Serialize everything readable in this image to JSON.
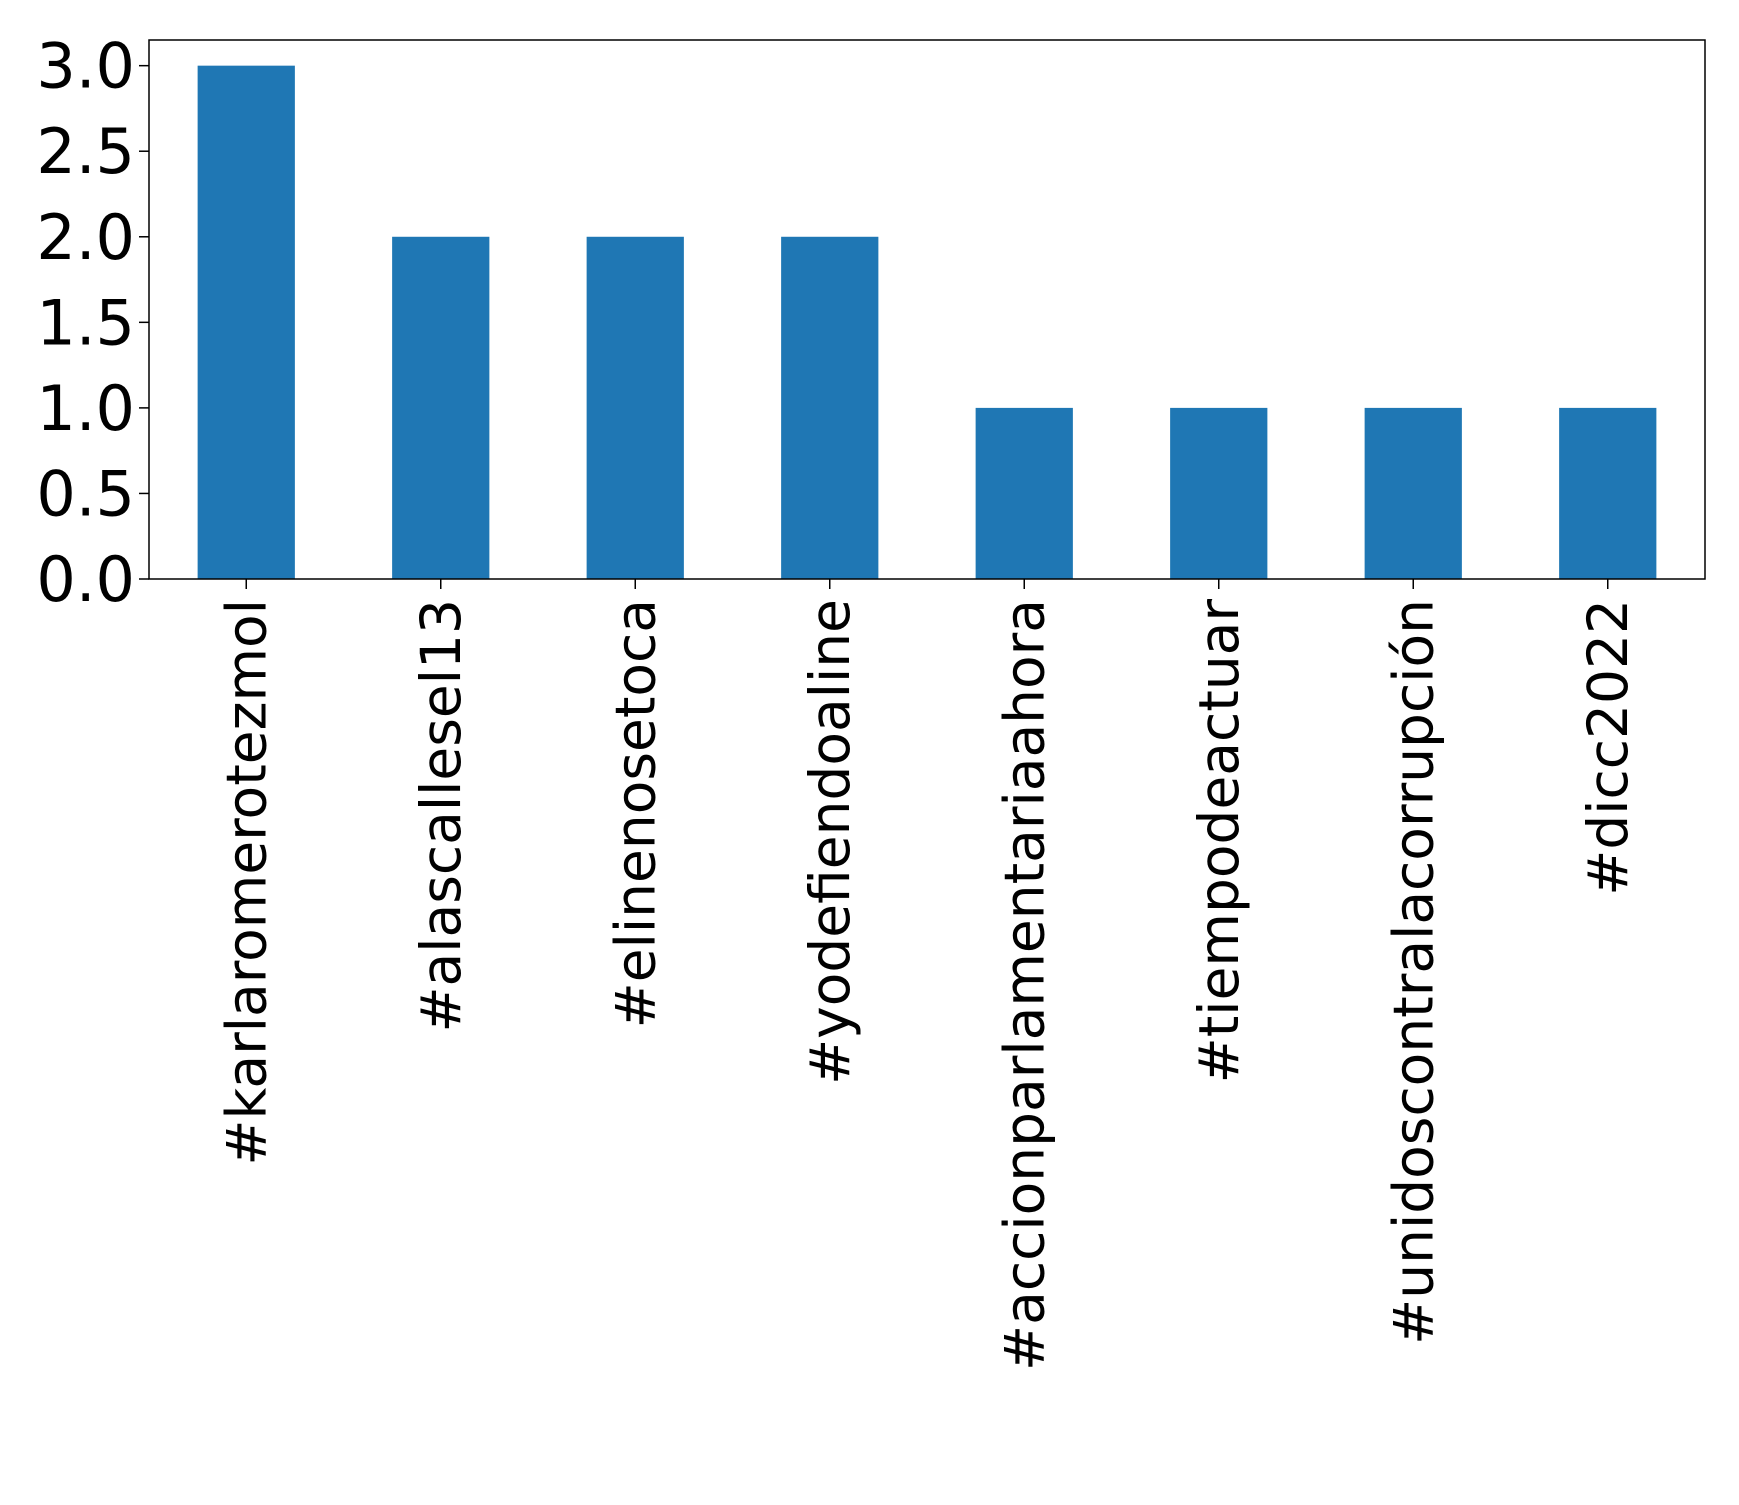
{
  "chart_data": {
    "type": "bar",
    "title": "",
    "xlabel": "",
    "ylabel": "",
    "categories": [
      "#karlaromerotezmol",
      "#alascallesel13",
      "#elinenosetoca",
      "#yodefiendoaline",
      "#accionparlamentariaahora",
      "#tiempodeactuar",
      "#unidoscontralacorrupción",
      "#dicc2022"
    ],
    "values": [
      3,
      2,
      2,
      2,
      1,
      1,
      1,
      1
    ],
    "ylim": [
      0,
      3.15
    ],
    "yticks": [
      0.0,
      0.5,
      1.0,
      1.5,
      2.0,
      2.5,
      3.0
    ],
    "ytick_labels": [
      "0.0",
      "0.5",
      "1.0",
      "1.5",
      "2.0",
      "2.5",
      "3.0"
    ],
    "grid": false,
    "legend": "none",
    "colors": {
      "bar": "#1f77b4",
      "axis": "#000000",
      "background": "#ffffff"
    }
  }
}
